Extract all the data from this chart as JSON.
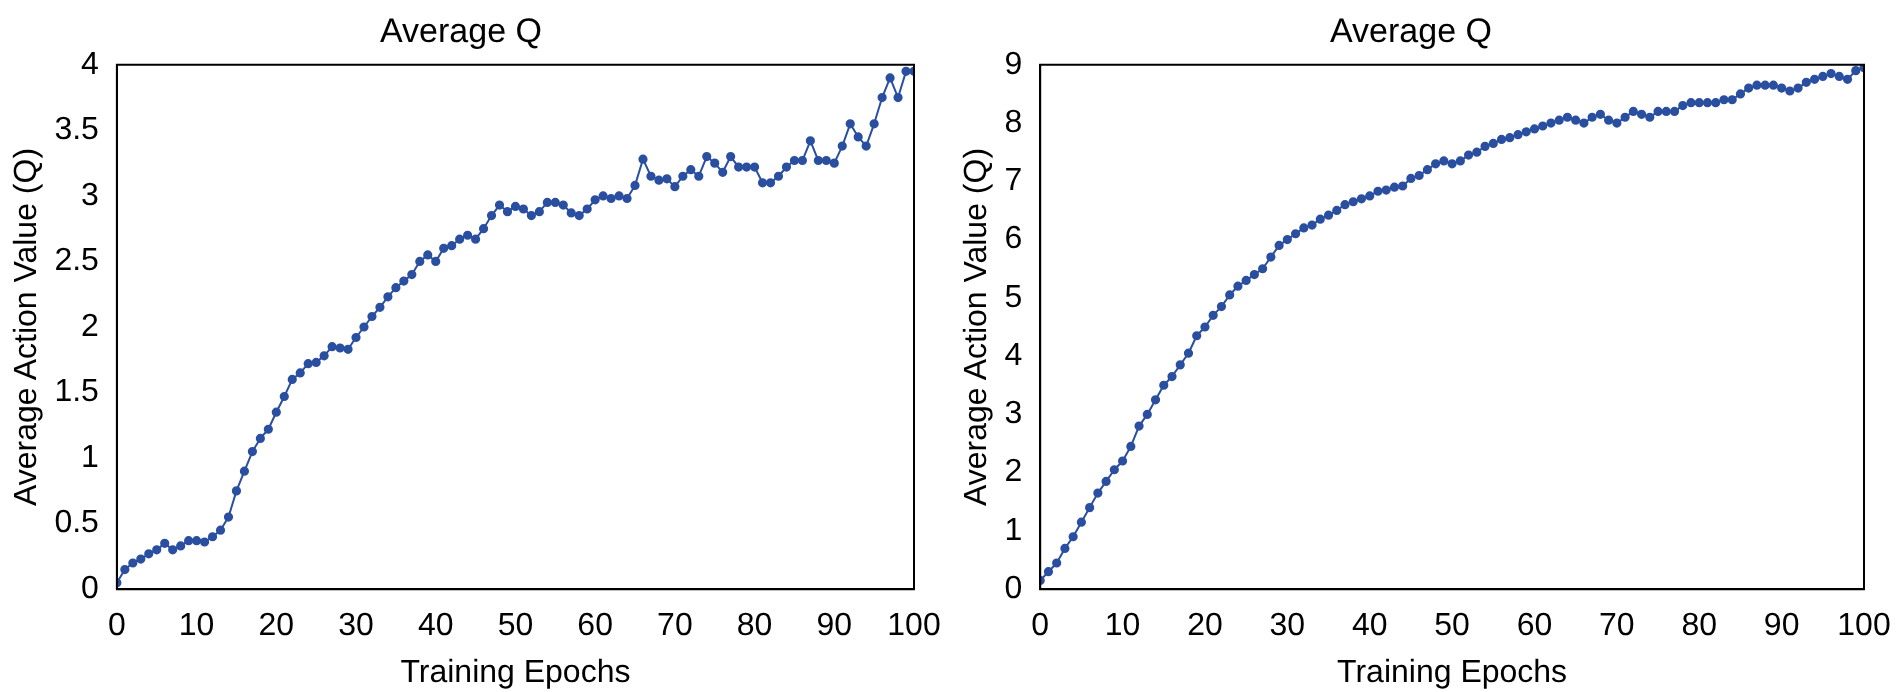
{
  "chart_data": [
    {
      "type": "line",
      "title": "Average Q",
      "xlabel": "Training Epochs",
      "ylabel": "Average Action Value (Q)",
      "xlim": [
        0,
        100
      ],
      "xticks": [
        0,
        10,
        20,
        30,
        40,
        50,
        60,
        70,
        80,
        90,
        100
      ],
      "ylim": [
        0,
        4
      ],
      "yticks": [
        0,
        0.5,
        1,
        1.5,
        2,
        2.5,
        3,
        3.5,
        4
      ],
      "grid": false,
      "legend": false,
      "marker": "circle",
      "line_style": "solid",
      "x": [
        0,
        1,
        2,
        3,
        4,
        5,
        6,
        7,
        8,
        9,
        10,
        11,
        12,
        13,
        14,
        15,
        16,
        17,
        18,
        19,
        20,
        21,
        22,
        23,
        24,
        25,
        26,
        27,
        28,
        29,
        30,
        31,
        32,
        33,
        34,
        35,
        36,
        37,
        38,
        39,
        40,
        41,
        42,
        43,
        44,
        45,
        46,
        47,
        48,
        49,
        50,
        51,
        52,
        53,
        54,
        55,
        56,
        57,
        58,
        59,
        60,
        61,
        62,
        63,
        64,
        65,
        66,
        67,
        68,
        69,
        70,
        71,
        72,
        73,
        74,
        75,
        76,
        77,
        78,
        79,
        80,
        81,
        82,
        83,
        84,
        85,
        86,
        87,
        88,
        89,
        90,
        91,
        92,
        93,
        94,
        95,
        96,
        97,
        98,
        99,
        100
      ],
      "series": [
        {
          "color": "#2a4fa0",
          "values": [
            0.05,
            0.15,
            0.2,
            0.23,
            0.27,
            0.3,
            0.35,
            0.3,
            0.33,
            0.37,
            0.37,
            0.36,
            0.4,
            0.45,
            0.55,
            0.75,
            0.9,
            1.05,
            1.15,
            1.22,
            1.35,
            1.47,
            1.6,
            1.65,
            1.72,
            1.73,
            1.78,
            1.85,
            1.84,
            1.83,
            1.92,
            2.0,
            2.08,
            2.15,
            2.23,
            2.3,
            2.35,
            2.4,
            2.5,
            2.55,
            2.5,
            2.6,
            2.62,
            2.67,
            2.7,
            2.67,
            2.75,
            2.85,
            2.93,
            2.88,
            2.92,
            2.9,
            2.85,
            2.88,
            2.95,
            2.95,
            2.93,
            2.87,
            2.85,
            2.9,
            2.97,
            3.0,
            2.98,
            3.0,
            2.98,
            3.08,
            3.28,
            3.15,
            3.12,
            3.13,
            3.07,
            3.15,
            3.2,
            3.15,
            3.3,
            3.25,
            3.18,
            3.3,
            3.22,
            3.22,
            3.22,
            3.1,
            3.1,
            3.15,
            3.22,
            3.27,
            3.27,
            3.42,
            3.27,
            3.27,
            3.25,
            3.38,
            3.55,
            3.45,
            3.38,
            3.55,
            3.75,
            3.9,
            3.75,
            3.95,
            3.95
          ]
        }
      ]
    },
    {
      "type": "line",
      "title": "Average Q",
      "xlabel": "Training Epochs",
      "ylabel": "Average Action Value (Q)",
      "xlim": [
        0,
        100
      ],
      "xticks": [
        0,
        10,
        20,
        30,
        40,
        50,
        60,
        70,
        80,
        90,
        100
      ],
      "ylim": [
        0,
        9
      ],
      "yticks": [
        0,
        1,
        2,
        3,
        4,
        5,
        6,
        7,
        8,
        9
      ],
      "grid": false,
      "legend": false,
      "marker": "circle",
      "line_style": "solid",
      "x": [
        0,
        1,
        2,
        3,
        4,
        5,
        6,
        7,
        8,
        9,
        10,
        11,
        12,
        13,
        14,
        15,
        16,
        17,
        18,
        19,
        20,
        21,
        22,
        23,
        24,
        25,
        26,
        27,
        28,
        29,
        30,
        31,
        32,
        33,
        34,
        35,
        36,
        37,
        38,
        39,
        40,
        41,
        42,
        43,
        44,
        45,
        46,
        47,
        48,
        49,
        50,
        51,
        52,
        53,
        54,
        55,
        56,
        57,
        58,
        59,
        60,
        61,
        62,
        63,
        64,
        65,
        66,
        67,
        68,
        69,
        70,
        71,
        72,
        73,
        74,
        75,
        76,
        77,
        78,
        79,
        80,
        81,
        82,
        83,
        84,
        85,
        86,
        87,
        88,
        89,
        90,
        91,
        92,
        93,
        94,
        95,
        96,
        97,
        98,
        99,
        100
      ],
      "series": [
        {
          "color": "#2a4fa0",
          "values": [
            0.15,
            0.3,
            0.45,
            0.7,
            0.9,
            1.15,
            1.4,
            1.65,
            1.85,
            2.05,
            2.2,
            2.45,
            2.8,
            3.0,
            3.25,
            3.5,
            3.65,
            3.85,
            4.05,
            4.35,
            4.5,
            4.7,
            4.85,
            5.05,
            5.2,
            5.3,
            5.4,
            5.5,
            5.7,
            5.9,
            6.0,
            6.1,
            6.2,
            6.25,
            6.35,
            6.42,
            6.5,
            6.6,
            6.65,
            6.7,
            6.75,
            6.83,
            6.85,
            6.9,
            6.92,
            7.05,
            7.1,
            7.2,
            7.3,
            7.35,
            7.3,
            7.35,
            7.45,
            7.5,
            7.6,
            7.65,
            7.72,
            7.75,
            7.8,
            7.85,
            7.9,
            7.95,
            8.0,
            8.05,
            8.1,
            8.05,
            8.0,
            8.1,
            8.15,
            8.05,
            8.0,
            8.1,
            8.2,
            8.15,
            8.1,
            8.2,
            8.2,
            8.2,
            8.3,
            8.35,
            8.35,
            8.35,
            8.35,
            8.4,
            8.4,
            8.5,
            8.6,
            8.65,
            8.65,
            8.65,
            8.6,
            8.55,
            8.6,
            8.7,
            8.75,
            8.8,
            8.85,
            8.8,
            8.75,
            8.9,
            8.95
          ]
        }
      ]
    }
  ]
}
